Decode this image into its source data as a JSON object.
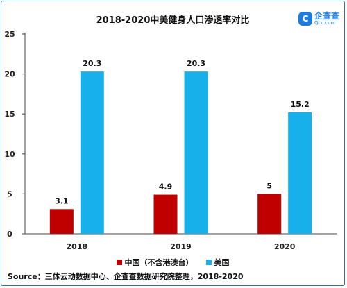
{
  "logo": {
    "mark": "C",
    "main": "企查查",
    "sub": "Qcc.com"
  },
  "legend": [
    {
      "name": "中国（不含港澳台）",
      "color": "#c00000"
    },
    {
      "name": "美国",
      "color": "#17b0ea"
    }
  ],
  "source": "Source：三体云动数据中心、企查查数据研究院整理，2018-2020",
  "chart_data": {
    "type": "bar",
    "title": "2018-2020中美健身人口渗透率对比",
    "xlabel": "",
    "ylabel": "",
    "categories": [
      "2018",
      "2019",
      "2020"
    ],
    "ylim": [
      0,
      25
    ],
    "yticks": [
      0,
      5,
      10,
      15,
      20,
      25
    ],
    "grid": false,
    "legend_position": "bottom",
    "series": [
      {
        "name": "中国（不含港澳台）",
        "color": "#c00000",
        "values": [
          3.1,
          4.9,
          5
        ],
        "labels": [
          "3.1",
          "4.9",
          "5"
        ]
      },
      {
        "name": "美国",
        "color": "#17b0ea",
        "values": [
          20.3,
          20.3,
          15.2
        ],
        "labels": [
          "20.3",
          "20.3",
          "15.2"
        ]
      }
    ]
  }
}
